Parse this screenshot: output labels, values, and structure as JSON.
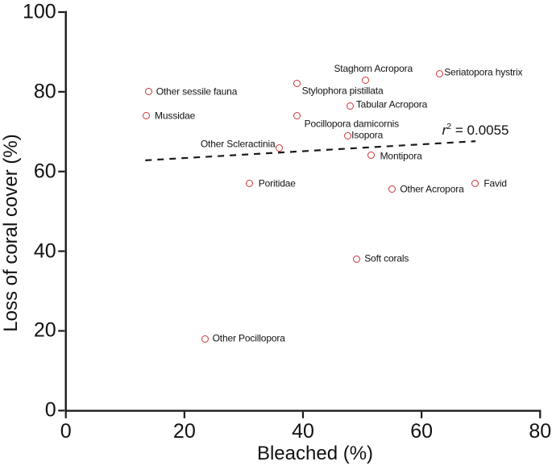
{
  "figure": {
    "background": "#ffffff",
    "axis_color": "#1a1a1a",
    "text_color": "#111111"
  },
  "chart_data": {
    "type": "scatter",
    "title": "",
    "xlabel": "Bleached (%)",
    "ylabel": "Loss of coral cover (%)",
    "xlim": [
      0,
      80
    ],
    "ylim": [
      0,
      100
    ],
    "x_ticks": [
      "0",
      "20",
      "40",
      "60",
      "80"
    ],
    "x_tick_values": [
      0,
      20,
      40,
      60,
      80
    ],
    "y_ticks": [
      "0",
      "20",
      "40",
      "60",
      "80",
      "100"
    ],
    "y_tick_values": [
      0,
      20,
      40,
      60,
      80,
      100
    ],
    "grid": false,
    "legend": false,
    "marker": {
      "shape": "open-circle",
      "color": "#cb3433",
      "size": 9
    },
    "points": [
      {
        "label": "Other sessile fauna",
        "x": 14,
        "y": 80,
        "label_side": "right",
        "label_offset": [
          9,
          0
        ]
      },
      {
        "label": "Mussidae",
        "x": 13.5,
        "y": 74,
        "label_side": "right",
        "label_offset": [
          11,
          0
        ]
      },
      {
        "label": "Other Scleractinia",
        "x": 36,
        "y": 66,
        "label_side": "left",
        "label_offset": [
          -5,
          -4
        ]
      },
      {
        "label": "Stylophora pistillata",
        "x": 39,
        "y": 82,
        "label_side": "right",
        "label_offset": [
          6,
          9
        ]
      },
      {
        "label": "Staghorn Acropora",
        "x": 50.5,
        "y": 83,
        "label_side": "above",
        "label_offset": [
          10,
          -7
        ]
      },
      {
        "label": "Seriatopora hystrix",
        "x": 63,
        "y": 84.5,
        "label_side": "right",
        "label_offset": [
          6,
          -2
        ]
      },
      {
        "label": "Tabular Acropora",
        "x": 48,
        "y": 76.5,
        "label_side": "right",
        "label_offset": [
          7,
          -1
        ]
      },
      {
        "label": "Pocillopora damicornis",
        "x": 39,
        "y": 74,
        "label_side": "right",
        "label_offset": [
          9,
          10
        ]
      },
      {
        "label": "Isopora",
        "x": 47.5,
        "y": 69,
        "label_side": "right",
        "label_offset": [
          5,
          0
        ]
      },
      {
        "label": "Montipora",
        "x": 51.5,
        "y": 64,
        "label_side": "right",
        "label_offset": [
          11,
          1
        ]
      },
      {
        "label": "Poritidae",
        "x": 31,
        "y": 57,
        "label_side": "right",
        "label_offset": [
          11,
          0
        ]
      },
      {
        "label": "Other Acropora",
        "x": 55,
        "y": 55.5,
        "label_side": "right",
        "label_offset": [
          10,
          0
        ]
      },
      {
        "label": "Favid",
        "x": 69,
        "y": 57,
        "label_side": "right",
        "label_offset": [
          11,
          0
        ]
      },
      {
        "label": "Soft corals",
        "x": 49,
        "y": 38,
        "label_side": "right",
        "label_offset": [
          10,
          0
        ]
      },
      {
        "label": "Other Pocillopora",
        "x": 23.5,
        "y": 18,
        "label_side": "right",
        "label_offset": [
          9,
          0
        ]
      }
    ],
    "trendline": {
      "style": "dashed",
      "color": "#1a1a1a",
      "x_start": 13.4,
      "y_start": 62.8,
      "x_end": 69.1,
      "y_end": 67.6
    },
    "annotation": {
      "variable": "r",
      "superscript": "2",
      "rest": " = 0.0055",
      "r_squared": 0.0055,
      "x": 69.1,
      "y": 70.5
    }
  }
}
